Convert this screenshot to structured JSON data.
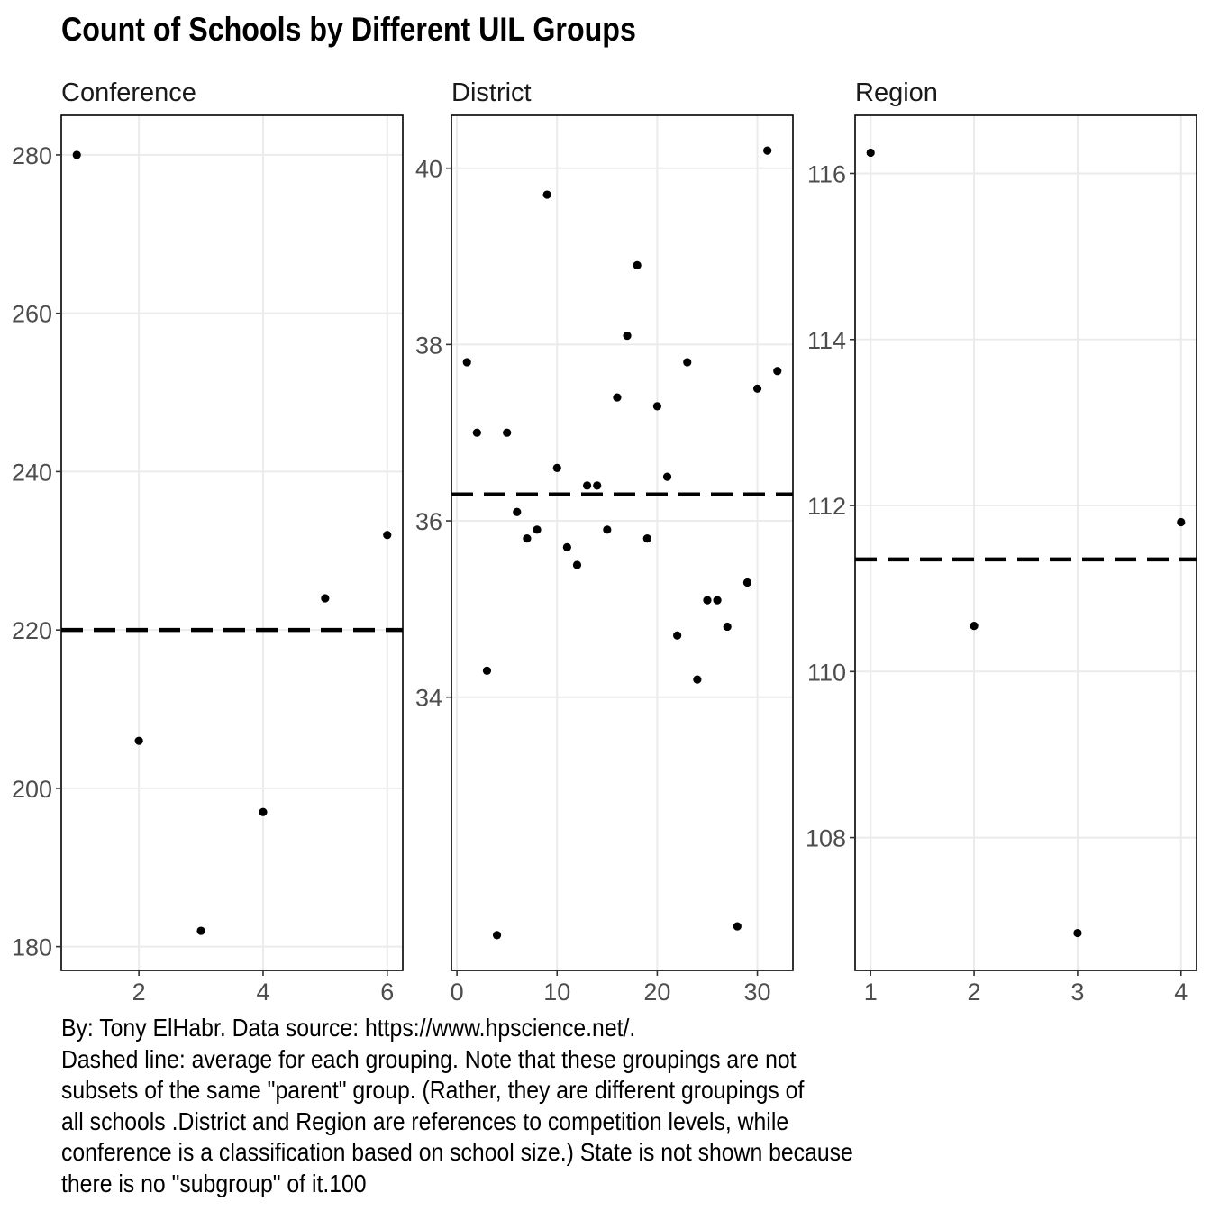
{
  "title": "Count of Schools by Different UIL Groups",
  "caption": [
    "By: Tony ElHabr. Data source: https://www.hpscience.net/.",
    "Dashed line: average for each grouping. Note that these groupings are not",
    "subsets of the same \"parent\" group. (Rather, they are different groupings of",
    "all schools .District and Region are references to competition levels, while",
    "conference is a classification based on school size.) State is not shown because",
    "there is no \"subgroup\" of it.100"
  ],
  "colors": {
    "points": "#000000",
    "gridlines": "#ebebeb",
    "panel_border": "#000000",
    "average_line": "#000000",
    "tick_text": "#4d4d4d"
  },
  "chart_data": [
    {
      "type": "scatter",
      "facet": "Conference",
      "x": [
        1,
        2,
        3,
        4,
        5,
        6
      ],
      "y": [
        280,
        206,
        182,
        197,
        224,
        232
      ],
      "average": 220,
      "xlim": [
        0.75,
        6.25
      ],
      "ylim": [
        177,
        285
      ],
      "xticks": [
        2,
        4,
        6
      ],
      "yticks": [
        180,
        200,
        220,
        240,
        260,
        280
      ],
      "grid": true
    },
    {
      "type": "scatter",
      "facet": "District",
      "x": [
        1,
        2,
        3,
        4,
        5,
        6,
        7,
        8,
        9,
        10,
        11,
        12,
        13,
        14,
        15,
        16,
        17,
        18,
        19,
        20,
        21,
        22,
        23,
        24,
        25,
        26,
        27,
        28,
        29,
        30,
        31,
        32
      ],
      "y": [
        37.8,
        37.0,
        34.3,
        31.3,
        37.0,
        36.1,
        35.8,
        35.9,
        39.7,
        36.6,
        35.7,
        35.5,
        36.4,
        36.4,
        35.9,
        37.4,
        38.1,
        38.9,
        35.8,
        37.3,
        36.5,
        34.7,
        37.8,
        34.2,
        35.1,
        35.1,
        34.8,
        31.4,
        35.3,
        37.5,
        40.2,
        37.7
      ],
      "average": 36.3,
      "xlim": [
        -0.55,
        33.55
      ],
      "ylim": [
        30.9,
        40.6
      ],
      "xticks": [
        0,
        10,
        20,
        30
      ],
      "yticks": [
        34,
        36,
        38,
        40
      ],
      "grid": true
    },
    {
      "type": "scatter",
      "facet": "Region",
      "x": [
        1,
        2,
        3,
        4
      ],
      "y": [
        116.25,
        110.55,
        106.85,
        111.8
      ],
      "average": 111.35,
      "xlim": [
        0.85,
        4.15
      ],
      "ylim": [
        106.4,
        116.7
      ],
      "xticks": [
        1,
        2,
        3,
        4
      ],
      "yticks": [
        108,
        110,
        112,
        114,
        116
      ],
      "grid": true
    }
  ]
}
